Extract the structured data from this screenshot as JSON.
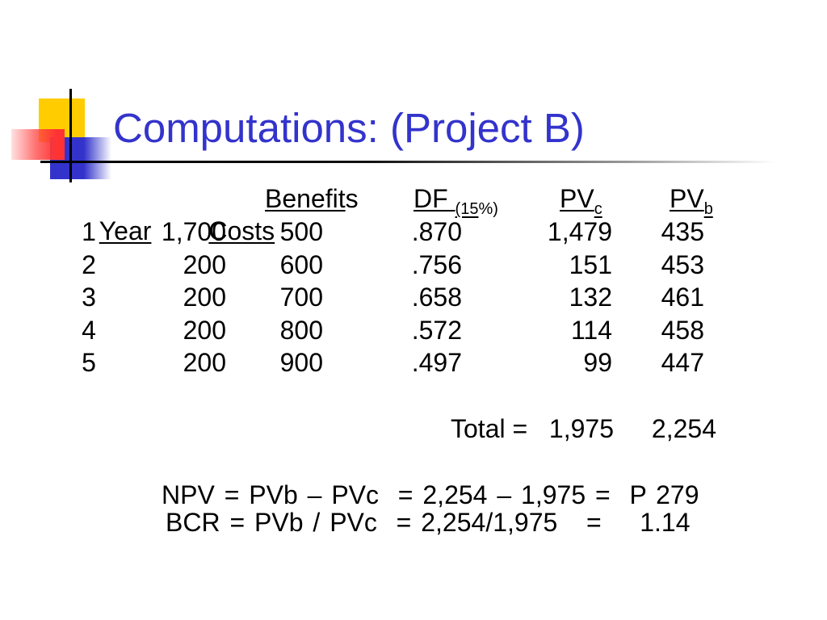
{
  "colors": {
    "title": "#3333CC",
    "text": "#000000",
    "accent_yellow": "#FFCC00",
    "accent_red": "#FF3333",
    "accent_blue": "#3333CC"
  },
  "slide": {
    "title": "Computations: (Project B)"
  },
  "table": {
    "headers": {
      "year": "Year",
      "costs": "Costs",
      "benefits": {
        "underlined": "Benefit",
        "rest": "s"
      },
      "df": {
        "main": "DF ",
        "sub_underlined": "(15",
        "sub_rest": "%)"
      },
      "pv_c": {
        "main": "PV",
        "sub": "c"
      },
      "pv_b": {
        "main": "PV",
        "sub": "b"
      }
    },
    "rows": [
      {
        "year": "1",
        "costs": "1,700",
        "benefits": "500",
        "df": ".870",
        "pv_c": "1,479",
        "pv_b": "435"
      },
      {
        "year": "2",
        "costs": "200",
        "benefits": "600",
        "df": ".756",
        "pv_c": "151",
        "pv_b": "453"
      },
      {
        "year": "3",
        "costs": "200",
        "benefits": "700",
        "df": ".658",
        "pv_c": "132",
        "pv_b": "461"
      },
      {
        "year": "4",
        "costs": "200",
        "benefits": "800",
        "df": ".572",
        "pv_c": "114",
        "pv_b": "458"
      },
      {
        "year": "5",
        "costs": "200",
        "benefits": "900",
        "df": ".497",
        "pv_c": "99",
        "pv_b": "447"
      }
    ],
    "total": {
      "label": "Total =",
      "pv_c": "1,975",
      "pv_b": "2,254"
    }
  },
  "results": {
    "npv": "NPV = PVb – PVc  = 2,254 – 1,975 =  P 279",
    "bcr": "BCR = PVb / PVc  = 2,254/1,975   =    1.14"
  }
}
